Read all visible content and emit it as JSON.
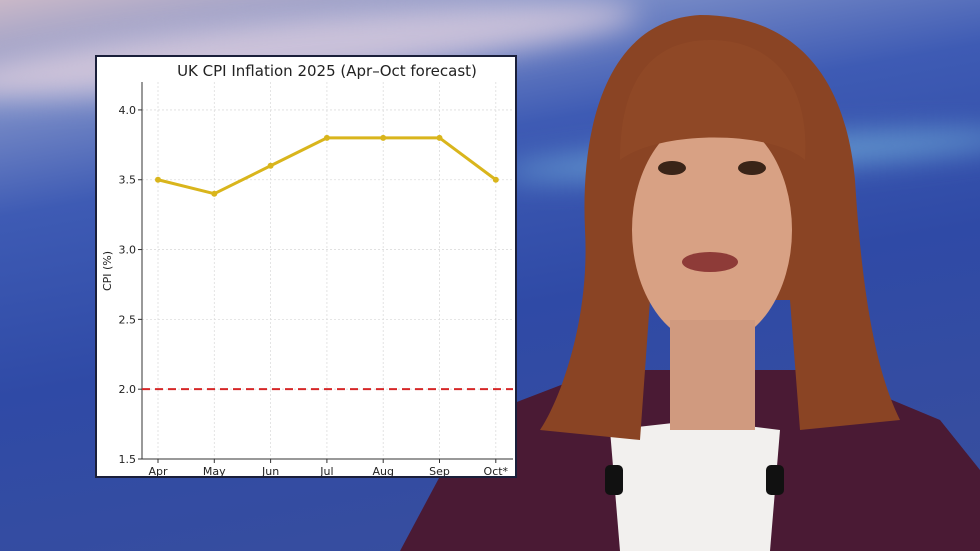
{
  "chart_data": {
    "type": "line",
    "title": "UK CPI Inflation 2025 (Apr–Oct forecast)",
    "xlabel": "",
    "ylabel": "CPI (%)",
    "categories": [
      "Apr",
      "May",
      "Jun",
      "Jul",
      "Aug",
      "Sep",
      "Oct*"
    ],
    "series": [
      {
        "values": [
          3.5,
          3.4,
          3.6,
          3.8,
          3.8,
          3.8,
          3.5
        ],
        "color": "#d9b51c"
      }
    ],
    "reference_line": {
      "value": 2.0,
      "color": "#d62728",
      "style": "dashed"
    },
    "ylim": [
      1.5,
      4.2
    ],
    "yticks": [
      "1.5",
      "2.0",
      "2.5",
      "3.0",
      "3.5",
      "4.0"
    ],
    "grid": true,
    "legend": "none"
  }
}
